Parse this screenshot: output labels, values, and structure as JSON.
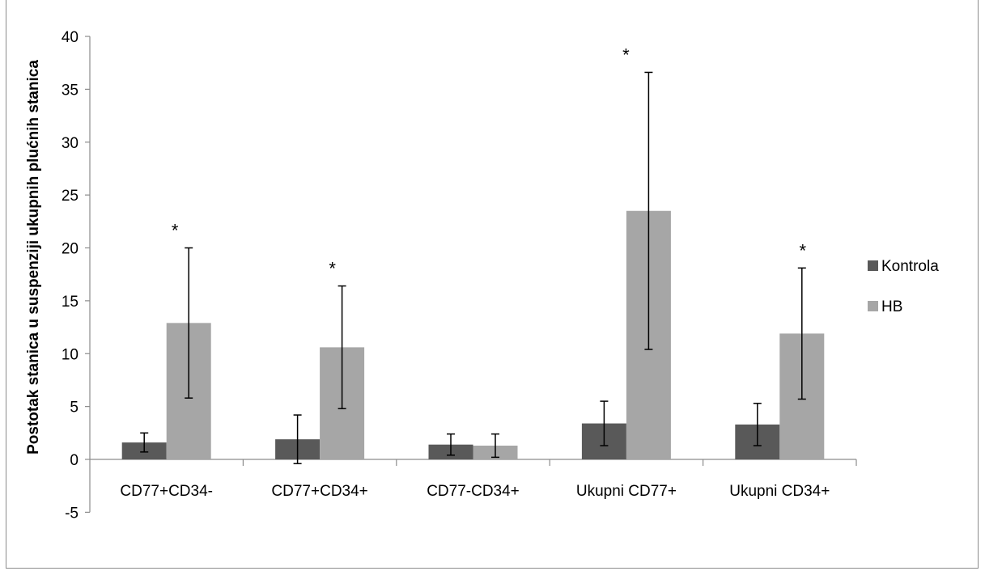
{
  "chart_data": {
    "type": "bar",
    "ylabel": "Postotak stanica u suspenziji ukupnih plućnih stanica",
    "ylim": [
      -5,
      40
    ],
    "ytick_step": 5,
    "categories": [
      "CD77+CD34-",
      "CD77+CD34+",
      "CD77-CD34+",
      "Ukupni CD77+",
      "Ukupni CD34+"
    ],
    "series": [
      {
        "name": "Kontrola",
        "color": "#595959",
        "values": [
          1.6,
          1.9,
          1.4,
          3.4,
          3.3
        ],
        "error": [
          0.9,
          2.3,
          1.0,
          2.1,
          2.0
        ]
      },
      {
        "name": "HB",
        "color": "#a6a6a6",
        "values": [
          12.9,
          10.6,
          1.3,
          23.5,
          11.9
        ],
        "error": [
          7.1,
          5.8,
          1.1,
          13.1,
          6.2
        ]
      }
    ],
    "annotations": [
      "*",
      "*",
      "",
      "*",
      "*"
    ],
    "grid": false,
    "legend_position": "right"
  }
}
